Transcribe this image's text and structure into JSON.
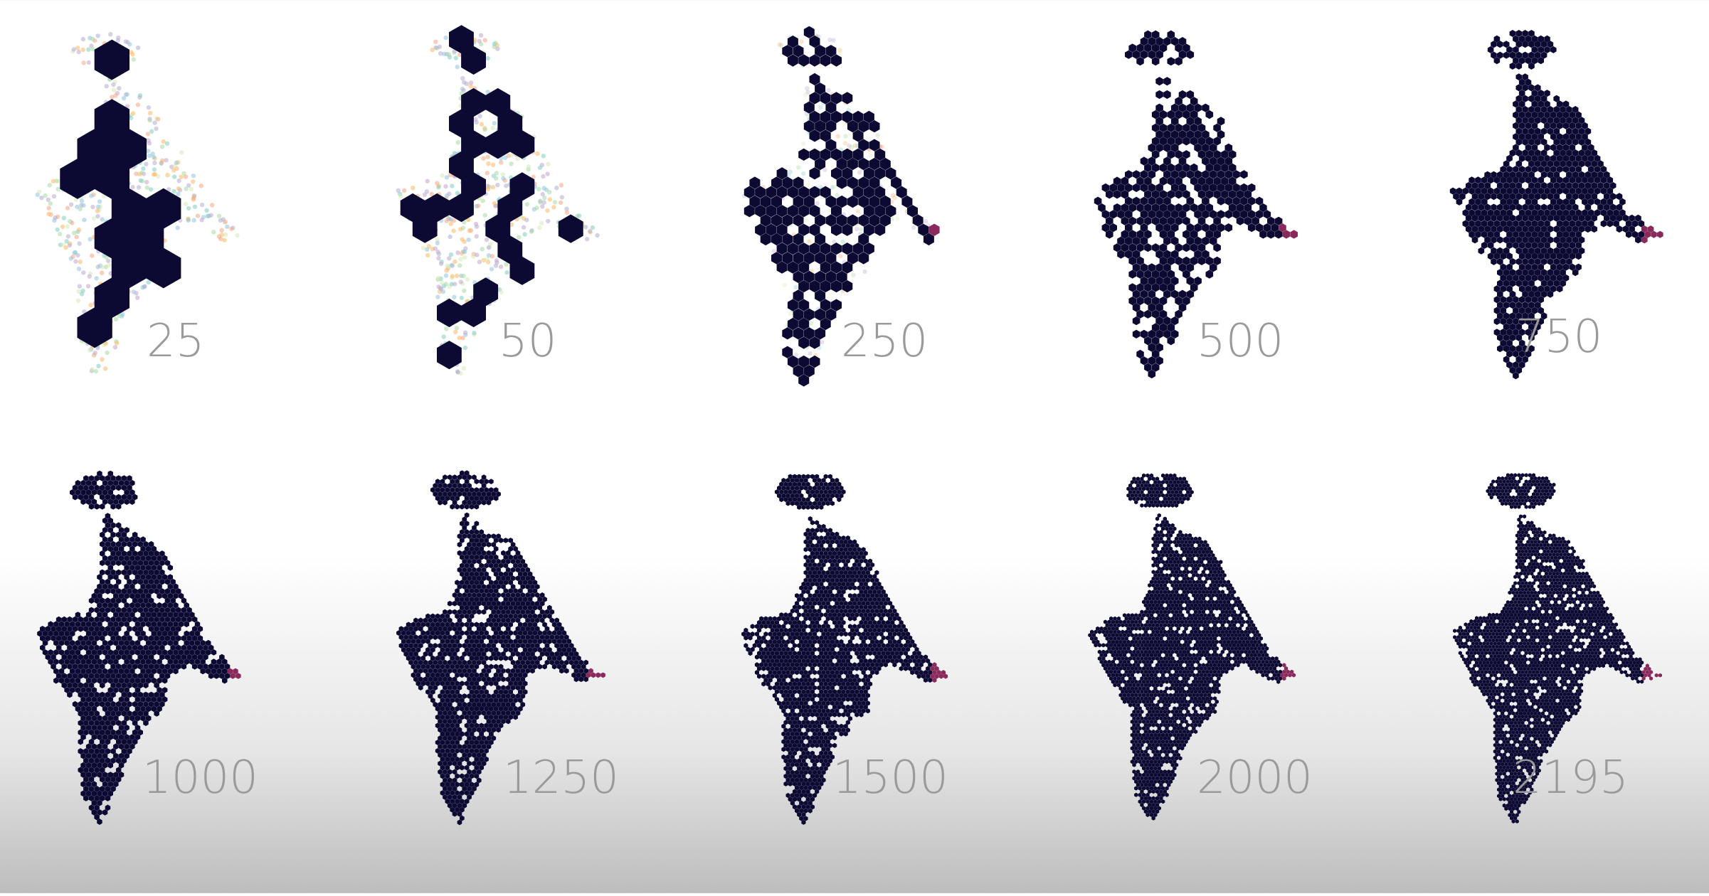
{
  "figure": {
    "panels": [
      {
        "label": "25",
        "cells": 25
      },
      {
        "label": "50",
        "cells": 50
      },
      {
        "label": "250",
        "cells": 250
      },
      {
        "label": "500",
        "cells": 500
      },
      {
        "label": "750",
        "cells": 750
      },
      {
        "label": "1000",
        "cells": 1000
      },
      {
        "label": "1250",
        "cells": 1250
      },
      {
        "label": "1500",
        "cells": 1500
      },
      {
        "label": "2000",
        "cells": 2000
      },
      {
        "label": "2195",
        "cells": 2195
      }
    ],
    "colors": {
      "hexagon": "#0c0a33",
      "accent": "#8a2a5c",
      "label": "#9a9a9a",
      "scatter": [
        "#f4a582",
        "#92c5de",
        "#b2abd2",
        "#d6eab8",
        "#fdb863",
        "#a6dba0",
        "#c2a5cf",
        "#80cdc1"
      ]
    }
  }
}
